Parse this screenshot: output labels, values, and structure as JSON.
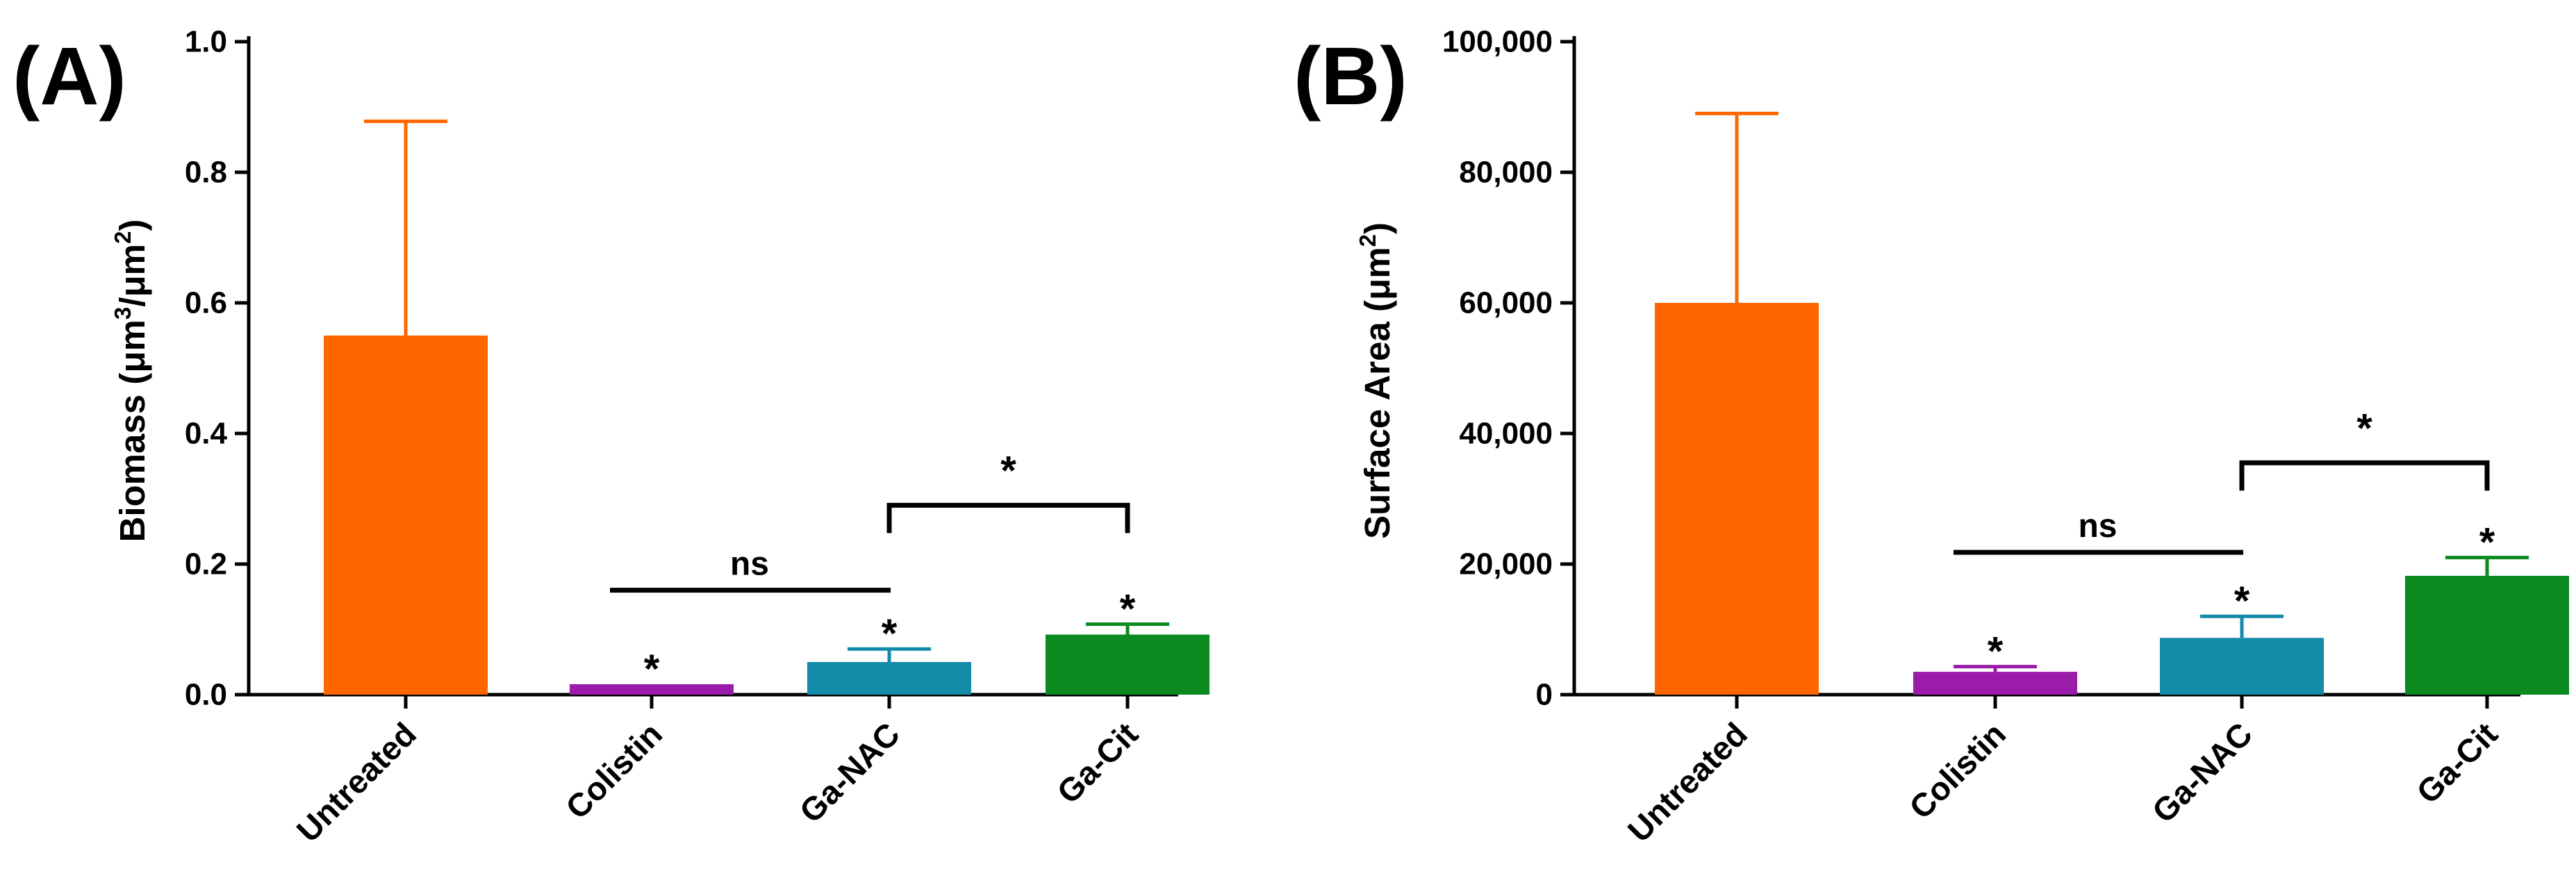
{
  "chart_data": [
    {
      "panel": "(A)",
      "type": "bar",
      "categories": [
        "Untreated",
        "Colistin",
        "Ga-NAC",
        "Ga-Cit"
      ],
      "values": [
        0.55,
        0.016,
        0.05,
        0.092
      ],
      "errors": [
        0.328,
        0.0,
        0.02,
        0.016
      ],
      "colors": [
        "#ff6600",
        "#9b1ca8",
        "#128aa8",
        "#0a8a1f"
      ],
      "ylabel_main": "Biomass (μm",
      "ylabel_sup1": "3",
      "ylabel_mid": "/μm",
      "ylabel_sup2": "2",
      "ylabel_end": ")",
      "ylim": [
        0,
        1.0
      ],
      "yticks": [
        0,
        0.2,
        0.4,
        0.6,
        0.8,
        1.0
      ],
      "ytick_labels": [
        "0.0",
        "0.2",
        "0.4",
        "0.6",
        "0.8",
        "1.0"
      ],
      "significance_marks": [
        "*",
        "*",
        "*"
      ],
      "brackets": [
        {
          "from": "Colistin",
          "to": "Ga-NAC",
          "label": "ns",
          "y": 0.16,
          "style": "line"
        },
        {
          "from": "Ga-NAC",
          "to": "Ga-Cit",
          "label": "*",
          "y": 0.29,
          "style": "bracket"
        }
      ]
    },
    {
      "panel": "(B)",
      "type": "bar",
      "categories": [
        "Untreated",
        "Colistin",
        "Ga-NAC",
        "Ga-Cit"
      ],
      "values": [
        60000,
        3500,
        8700,
        18200
      ],
      "errors": [
        29000,
        800,
        3300,
        2800
      ],
      "colors": [
        "#ff6600",
        "#9b1ca8",
        "#128aa8",
        "#0a8a1f"
      ],
      "ylabel_main": "Surface Area (μm",
      "ylabel_sup1": "2",
      "ylabel_end": ")",
      "ylim": [
        0,
        100000
      ],
      "yticks": [
        0,
        20000,
        40000,
        60000,
        80000,
        100000
      ],
      "ytick_labels": [
        "0",
        "20,000",
        "40,000",
        "60,000",
        "80,000",
        "100,000"
      ],
      "significance_marks": [
        "*",
        "*",
        "*"
      ],
      "brackets": [
        {
          "from": "Colistin",
          "to": "Ga-NAC",
          "label": "ns",
          "y": 21800,
          "style": "line"
        },
        {
          "from": "Ga-NAC",
          "to": "Ga-Cit",
          "label": "*",
          "y": 35500,
          "style": "bracket"
        }
      ]
    }
  ]
}
